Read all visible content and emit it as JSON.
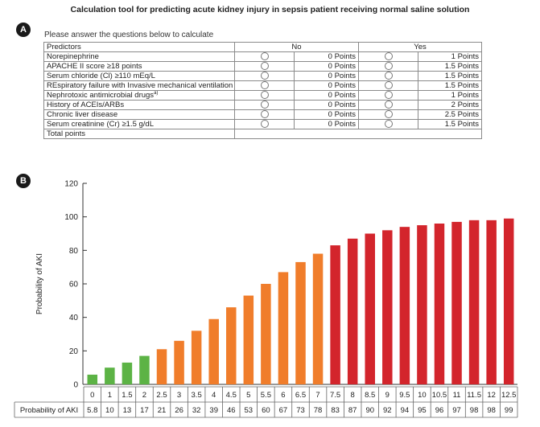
{
  "title": "Calculation tool for predicting acute kidney injury in sepsis patient receiving normal saline solution",
  "panel_a": {
    "label": "A",
    "instruction": "Please answer the questions below to calculate",
    "headers": {
      "predictors": "Predictors",
      "no": "No",
      "yes": "Yes"
    },
    "rows": [
      {
        "name": "Norepinephrine",
        "no": "0 Points",
        "yes": "1 Points"
      },
      {
        "name": "APACHE II score ≥18 points",
        "no": "0 Points",
        "yes": "1.5 Points"
      },
      {
        "name": "Serum chloride (Cl) ≥110 mEq/L",
        "no": "0 Points",
        "yes": "1.5 Points"
      },
      {
        "name": "REspiratory failure with Invasive mechanical ventilation",
        "no": "0 Points",
        "yes": "1.5 Points"
      },
      {
        "name": "Nephrotoxic antimicrobial drugs",
        "sup": "a)",
        "no": "0 Points",
        "yes": "1 Points"
      },
      {
        "name": "History of ACEIs/ARBs",
        "no": "0 Points",
        "yes": "2 Points"
      },
      {
        "name": "Chronic liver disease",
        "no": "0 Points",
        "yes": "2.5 Points"
      },
      {
        "name": "Serum creatinine (Cr) ≥1.5 g/dL",
        "no": "0 Points",
        "yes": "1.5 Points"
      }
    ],
    "total_label": "Total points"
  },
  "panel_b": {
    "label": "B"
  },
  "colors": {
    "green": "#5cb345",
    "orange": "#f07d2b",
    "red": "#d3252c"
  },
  "chart_data": {
    "type": "bar",
    "ylabel": "Probability of AKI",
    "row_label": "Probability of AKI",
    "ylim": [
      0,
      120
    ],
    "yticks": [
      0,
      20,
      40,
      60,
      80,
      100,
      120
    ],
    "categories": [
      "0",
      "1",
      "1.5",
      "2",
      "2.5",
      "3",
      "3.5",
      "4",
      "4.5",
      "5",
      "5.5",
      "6",
      "6.5",
      "7",
      "7.5",
      "8",
      "8.5",
      "9",
      "9.5",
      "10",
      "10.5",
      "11",
      "11.5",
      "12",
      "12.5"
    ],
    "values": [
      5.8,
      10,
      13,
      17,
      21,
      26,
      32,
      39,
      46,
      53,
      60,
      67,
      73,
      78,
      83,
      87,
      90,
      92,
      94,
      95,
      96,
      97,
      98,
      98,
      99
    ],
    "value_labels": [
      "5.8",
      "10",
      "13",
      "17",
      "21",
      "26",
      "32",
      "39",
      "46",
      "53",
      "60",
      "67",
      "73",
      "78",
      "83",
      "87",
      "90",
      "92",
      "94",
      "95",
      "96",
      "97",
      "98",
      "98",
      "99"
    ],
    "colors": [
      "green",
      "green",
      "green",
      "green",
      "orange",
      "orange",
      "orange",
      "orange",
      "orange",
      "orange",
      "orange",
      "orange",
      "orange",
      "orange",
      "red",
      "red",
      "red",
      "red",
      "red",
      "red",
      "red",
      "red",
      "red",
      "red",
      "red"
    ]
  }
}
